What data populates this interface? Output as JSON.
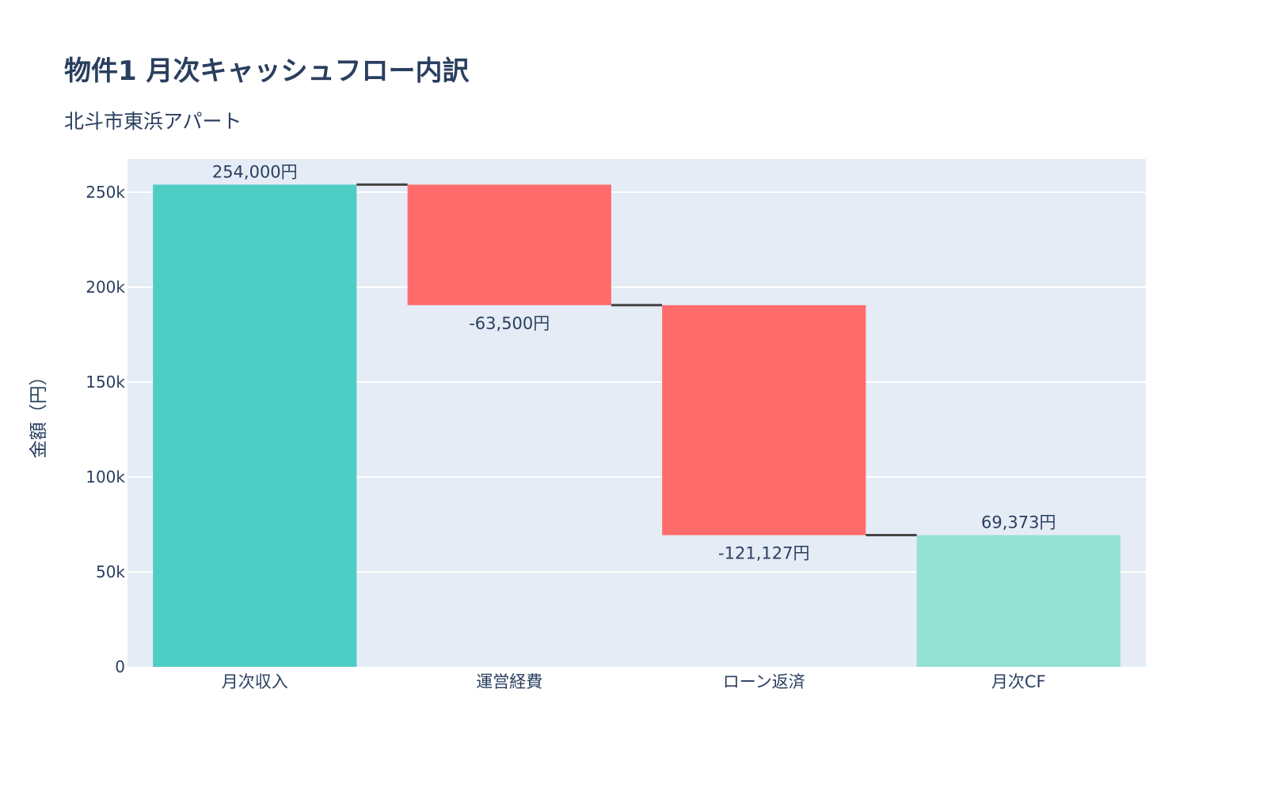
{
  "chart_data": {
    "type": "waterfall",
    "title": "物件1 月次キャッシュフロー内訳",
    "subtitle": "北斗市東浜アパート",
    "ylabel": "金額（円）",
    "xlabel": "",
    "categories": [
      "月次収入",
      "運営経費",
      "ローン返済",
      "月次CF"
    ],
    "measures": [
      "relative",
      "relative",
      "relative",
      "total"
    ],
    "values": [
      254000,
      -63500,
      -121127,
      69373
    ],
    "data_labels": [
      "254,000円",
      "-63,500円",
      "-121,127円",
      "69,373円"
    ],
    "ylim": [
      0,
      267500
    ],
    "y_ticks": [
      0,
      50000,
      100000,
      150000,
      200000,
      250000
    ],
    "y_tick_labels": [
      "0",
      "50k",
      "100k",
      "150k",
      "200k",
      "250k"
    ],
    "grid": true,
    "colors": {
      "increasing": "#4ECDC4",
      "decreasing": "#FF6B6B",
      "total": "#95E1D3",
      "connector": "#444444",
      "plot_bg": "#E5ECF6",
      "grid": "#FFFFFF"
    }
  }
}
